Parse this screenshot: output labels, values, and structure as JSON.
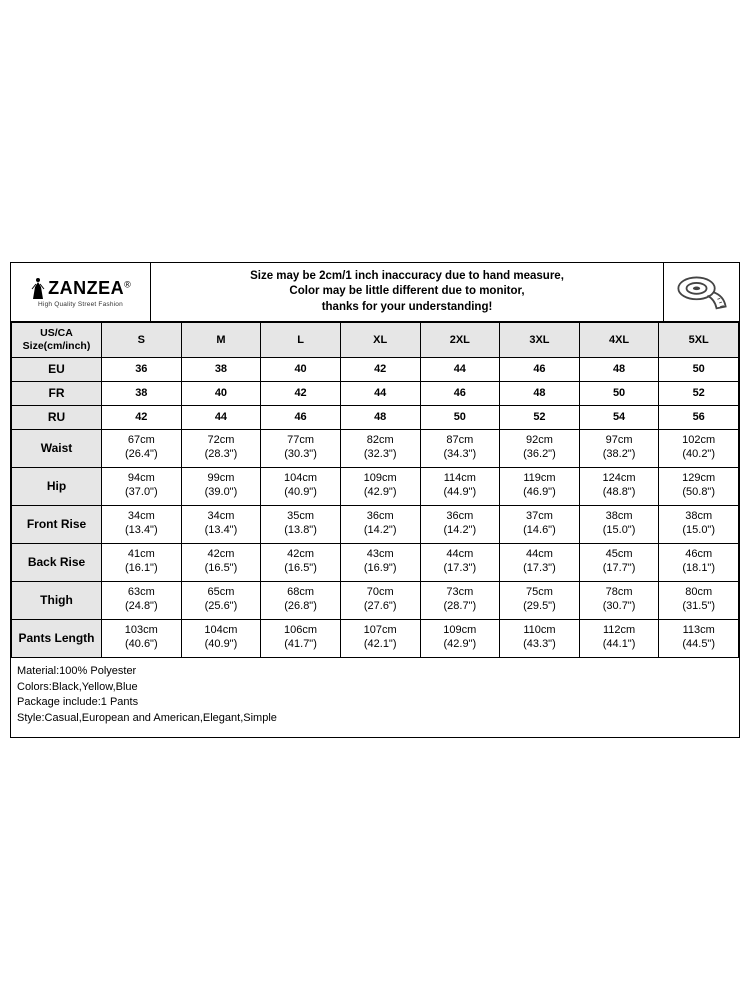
{
  "brand": {
    "name": "ZANZEA",
    "reg": "®",
    "tagline": "High Quality Street Fashion"
  },
  "note": {
    "line1": "Size may be 2cm/1 inch inaccuracy due to hand measure,",
    "line2": "Color may be little different due to monitor,",
    "line3": "thanks for your understanding!"
  },
  "header_label": {
    "l1": "US/CA",
    "l2": "Size(cm/inch)"
  },
  "sizes": [
    "S",
    "M",
    "L",
    "XL",
    "2XL",
    "3XL",
    "4XL",
    "5XL"
  ],
  "simple_rows": [
    {
      "label": "EU",
      "vals": [
        "36",
        "38",
        "40",
        "42",
        "44",
        "46",
        "48",
        "50"
      ]
    },
    {
      "label": "FR",
      "vals": [
        "38",
        "40",
        "42",
        "44",
        "46",
        "48",
        "50",
        "52"
      ]
    },
    {
      "label": "RU",
      "vals": [
        "42",
        "44",
        "46",
        "48",
        "50",
        "52",
        "54",
        "56"
      ]
    }
  ],
  "measure_rows": [
    {
      "label": "Waist",
      "cm": [
        "67cm",
        "72cm",
        "77cm",
        "82cm",
        "87cm",
        "92cm",
        "97cm",
        "102cm"
      ],
      "in": [
        "(26.4\")",
        "(28.3\")",
        "(30.3\")",
        "(32.3\")",
        "(34.3\")",
        "(36.2\")",
        "(38.2\")",
        "(40.2\")"
      ]
    },
    {
      "label": "Hip",
      "cm": [
        "94cm",
        "99cm",
        "104cm",
        "109cm",
        "114cm",
        "119cm",
        "124cm",
        "129cm"
      ],
      "in": [
        "(37.0\")",
        "(39.0\")",
        "(40.9\")",
        "(42.9\")",
        "(44.9\")",
        "(46.9\")",
        "(48.8\")",
        "(50.8\")"
      ]
    },
    {
      "label": "Front Rise",
      "cm": [
        "34cm",
        "34cm",
        "35cm",
        "36cm",
        "36cm",
        "37cm",
        "38cm",
        "38cm"
      ],
      "in": [
        "(13.4\")",
        "(13.4\")",
        "(13.8\")",
        "(14.2\")",
        "(14.2\")",
        "(14.6\")",
        "(15.0\")",
        "(15.0\")"
      ]
    },
    {
      "label": "Back Rise",
      "cm": [
        "41cm",
        "42cm",
        "42cm",
        "43cm",
        "44cm",
        "44cm",
        "45cm",
        "46cm"
      ],
      "in": [
        "(16.1\")",
        "(16.5\")",
        "(16.5\")",
        "(16.9\")",
        "(17.3\")",
        "(17.3\")",
        "(17.7\")",
        "(18.1\")"
      ]
    },
    {
      "label": "Thigh",
      "cm": [
        "63cm",
        "65cm",
        "68cm",
        "70cm",
        "73cm",
        "75cm",
        "78cm",
        "80cm"
      ],
      "in": [
        "(24.8\")",
        "(25.6\")",
        "(26.8\")",
        "(27.6\")",
        "(28.7\")",
        "(29.5\")",
        "(30.7\")",
        "(31.5\")"
      ]
    },
    {
      "label": "Pants Length",
      "cm": [
        "103cm",
        "104cm",
        "106cm",
        "107cm",
        "109cm",
        "110cm",
        "112cm",
        "113cm"
      ],
      "in": [
        "(40.6\")",
        "(40.9\")",
        "(41.7\")",
        "(42.1\")",
        "(42.9\")",
        "(43.3\")",
        "(44.1\")",
        "(44.5\")"
      ]
    }
  ],
  "details": {
    "material": "Material:100% Polyester",
    "colors": "Colors:Black,Yellow,Blue",
    "package": "Package include:1 Pants",
    "style": "Style:Casual,European and American,Elegant,Simple"
  },
  "style": {
    "header_bg": "#e6e6e6",
    "border_color": "#000000",
    "body_font_size": 11,
    "note_font_size": 11.5,
    "brand_font_size": 18
  }
}
